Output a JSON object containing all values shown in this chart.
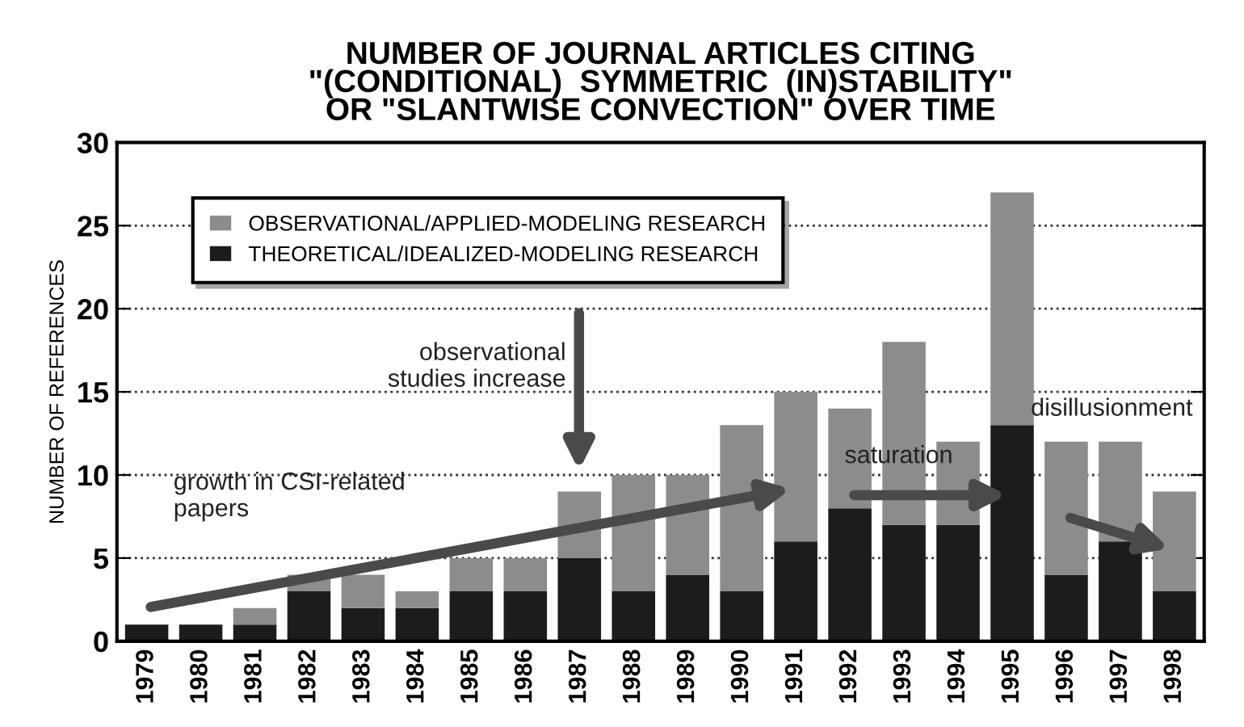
{
  "chart_data": {
    "type": "bar",
    "stacked": true,
    "title": "NUMBER OF JOURNAL ARTICLES CITING\n\"(CONDITIONAL)  SYMMETRIC  (IN)STABILITY\"\nOR \"SLANTWISE CONVECTION\" OVER TIME",
    "ylabel": "NUMBER OF REFERENCES",
    "categories": [
      "1979",
      "1980",
      "1981",
      "1982",
      "1983",
      "1984",
      "1985",
      "1986",
      "1987",
      "1988",
      "1989",
      "1990",
      "1991",
      "1992",
      "1993",
      "1994",
      "1995",
      "1996",
      "1997",
      "1998"
    ],
    "series": [
      {
        "name": "THEORETICAL/IDEALIZED-MODELING RESEARCH",
        "color": "#1c1c1c",
        "values": [
          1,
          1,
          1,
          3,
          2,
          2,
          3,
          3,
          5,
          3,
          4,
          3,
          6,
          8,
          7,
          7,
          13,
          4,
          6,
          3
        ]
      },
      {
        "name": "OBSERVATIONAL/APPLIED-MODELING RESEARCH",
        "color": "#8c8c8c",
        "values": [
          0,
          0,
          1,
          1,
          2,
          1,
          2,
          2,
          4,
          7,
          6,
          10,
          9,
          6,
          11,
          5,
          14,
          8,
          6,
          6
        ]
      }
    ],
    "ylim": [
      0,
      30
    ],
    "yticks": [
      0,
      5,
      10,
      15,
      20,
      25,
      30
    ],
    "grid": "y",
    "legend": "top left",
    "annotations": [
      "growth in CSI-related\npapers",
      "observational\nstudies increase",
      "saturation",
      "disillusionment"
    ]
  }
}
